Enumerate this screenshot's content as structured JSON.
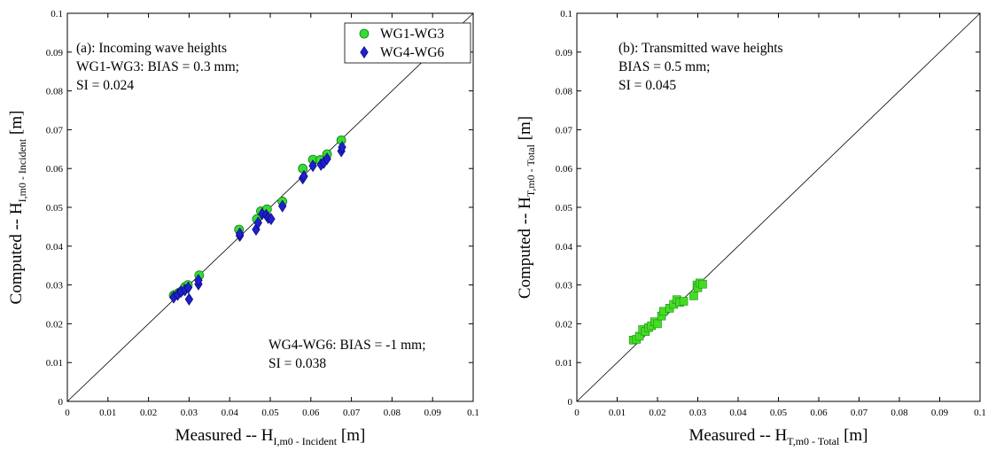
{
  "chart_data": [
    {
      "type": "scatter",
      "xlabel": {
        "main": "Measured -- H",
        "sub": "I,m0 - Incident",
        "unit": " [m]"
      },
      "ylabel": {
        "main": "Computed -- H",
        "sub": "I,m0 - Incident",
        "unit": " [m]"
      },
      "xlim": [
        0,
        0.1
      ],
      "ylim": [
        0,
        0.1
      ],
      "ticks": [
        "0",
        "0.01",
        "0.02",
        "0.03",
        "0.04",
        "0.05",
        "0.06",
        "0.07",
        "0.08",
        "0.09",
        "0.1"
      ],
      "grid": false,
      "reference_line": [
        [
          0,
          0
        ],
        [
          0.1,
          0.1
        ]
      ],
      "legend_position": "top-right",
      "annotations": [
        {
          "text": "(a): Incoming wave heights",
          "position": "top-left",
          "line": 0
        },
        {
          "text": "WG1-WG3: BIAS = 0.3 mm;",
          "position": "top-left",
          "line": 1
        },
        {
          "text": "SI = 0.024",
          "position": "top-left",
          "line": 2
        },
        {
          "text": "WG4-WG6: BIAS = -1 mm;",
          "position": "bottom-right",
          "line": 0
        },
        {
          "text": "SI = 0.038",
          "position": "bottom-right",
          "line": 1
        }
      ],
      "series": [
        {
          "name": "WG1-WG3",
          "marker": "circle",
          "color": "#33dd33",
          "points": [
            [
              0.0262,
              0.0273
            ],
            [
              0.0266,
              0.0275
            ],
            [
              0.0275,
              0.028
            ],
            [
              0.0283,
              0.0285
            ],
            [
              0.029,
              0.0295
            ],
            [
              0.0297,
              0.03
            ],
            [
              0.0325,
              0.0325
            ],
            [
              0.0423,
              0.0443
            ],
            [
              0.0467,
              0.047
            ],
            [
              0.0477,
              0.049
            ],
            [
              0.0492,
              0.0495
            ],
            [
              0.053,
              0.0515
            ],
            [
              0.058,
              0.06
            ],
            [
              0.0605,
              0.0623
            ],
            [
              0.0623,
              0.0622
            ],
            [
              0.064,
              0.0637
            ],
            [
              0.0675,
              0.0673
            ]
          ]
        },
        {
          "name": "WG4-WG6",
          "marker": "diamond",
          "color": "#1f1fcc",
          "points": [
            [
              0.0262,
              0.0268
            ],
            [
              0.0272,
              0.0275
            ],
            [
              0.028,
              0.0283
            ],
            [
              0.029,
              0.0287
            ],
            [
              0.0298,
              0.0293
            ],
            [
              0.03,
              0.0263
            ],
            [
              0.0323,
              0.0302
            ],
            [
              0.0323,
              0.0312
            ],
            [
              0.0425,
              0.0427
            ],
            [
              0.0425,
              0.0432
            ],
            [
              0.0465,
              0.0443
            ],
            [
              0.047,
              0.046
            ],
            [
              0.048,
              0.0483
            ],
            [
              0.049,
              0.048
            ],
            [
              0.0495,
              0.0473
            ],
            [
              0.0502,
              0.047
            ],
            [
              0.053,
              0.0503
            ],
            [
              0.058,
              0.0575
            ],
            [
              0.0583,
              0.058
            ],
            [
              0.0605,
              0.0607
            ],
            [
              0.0625,
              0.061
            ],
            [
              0.0632,
              0.0615
            ],
            [
              0.064,
              0.0625
            ],
            [
              0.0675,
              0.0645
            ],
            [
              0.0677,
              0.0655
            ]
          ]
        }
      ]
    },
    {
      "type": "scatter",
      "xlabel": {
        "main": "Measured -- H",
        "sub": "T,m0 - Total",
        "unit": " [m]"
      },
      "ylabel": {
        "main": "Computed -- H",
        "sub": "T,m0 - Total",
        "unit": " [m]"
      },
      "xlim": [
        0,
        0.1
      ],
      "ylim": [
        0,
        0.1
      ],
      "ticks": [
        "0",
        "0.01",
        "0.02",
        "0.03",
        "0.04",
        "0.05",
        "0.06",
        "0.07",
        "0.08",
        "0.09",
        "0.1"
      ],
      "grid": false,
      "reference_line": [
        [
          0,
          0
        ],
        [
          0.1,
          0.1
        ]
      ],
      "annotations": [
        {
          "text": "(b): Transmitted wave heights",
          "position": "top-left",
          "line": 0
        },
        {
          "text": "BIAS = 0.5 mm;",
          "position": "top-left",
          "line": 1
        },
        {
          "text": "SI = 0.045",
          "position": "top-left",
          "line": 2
        }
      ],
      "series": [
        {
          "marker": "square",
          "color": "#44dd22",
          "points": [
            [
              0.014,
              0.0158
            ],
            [
              0.0148,
              0.016
            ],
            [
              0.0155,
              0.0168
            ],
            [
              0.0163,
              0.0185
            ],
            [
              0.017,
              0.018
            ],
            [
              0.0178,
              0.019
            ],
            [
              0.0185,
              0.0195
            ],
            [
              0.0193,
              0.0205
            ],
            [
              0.02,
              0.02
            ],
            [
              0.021,
              0.022
            ],
            [
              0.0215,
              0.0232
            ],
            [
              0.023,
              0.024
            ],
            [
              0.024,
              0.025
            ],
            [
              0.0248,
              0.0262
            ],
            [
              0.0255,
              0.0255
            ],
            [
              0.0265,
              0.0258
            ],
            [
              0.029,
              0.0272
            ],
            [
              0.0298,
              0.03
            ],
            [
              0.03,
              0.0293
            ],
            [
              0.0305,
              0.0305
            ],
            [
              0.0312,
              0.0302
            ]
          ]
        }
      ]
    }
  ]
}
